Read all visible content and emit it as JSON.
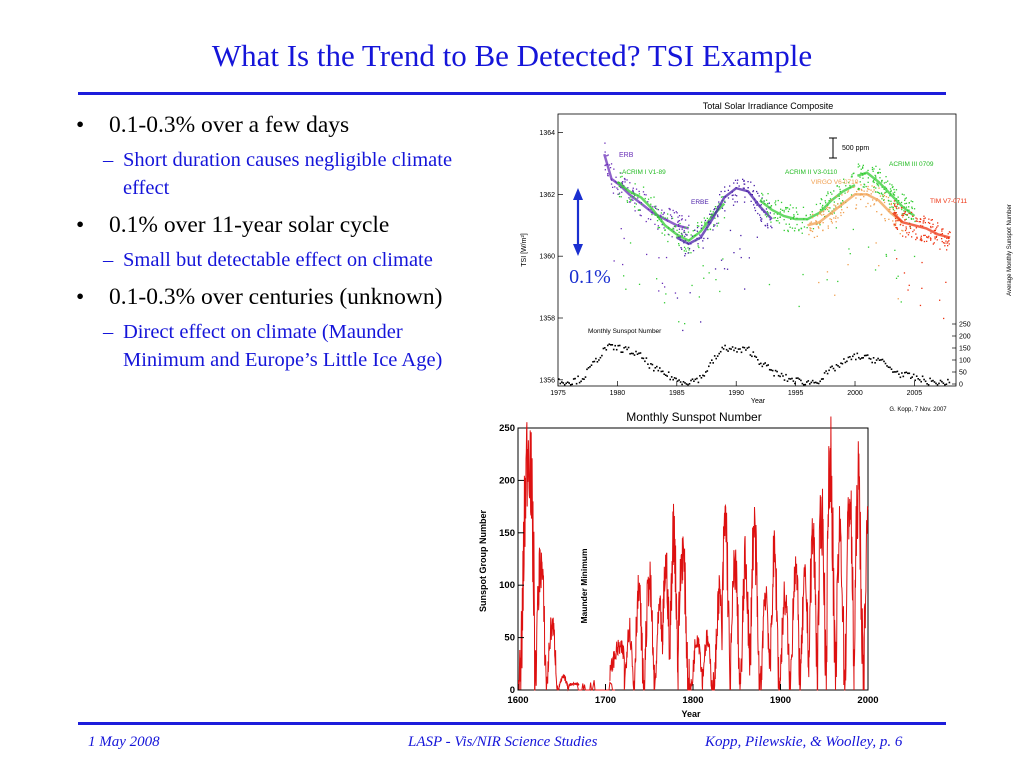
{
  "slide": {
    "title": "What Is the Trend to Be Detected? TSI Example",
    "bullets": [
      {
        "text": "0.1-0.3% over a few days",
        "sub": "Short duration causes negligible climate effect"
      },
      {
        "text": "0.1% over 11-year solar cycle",
        "sub": "Small but detectable effect on climate"
      },
      {
        "text": "0.1-0.3% over centuries (unknown)",
        "sub": "Direct effect on climate (Maunder Minimum and Europe’s Little Ice Age)"
      }
    ],
    "bullet_symbol": "•",
    "dash_symbol": "–",
    "annotation": "0.1%",
    "colors": {
      "title": "#1515d9",
      "rule": "#1d1ddb",
      "arrow": "#1a2fd0",
      "red_series": "#dd1111"
    }
  },
  "footer": {
    "date": "1 May 2008",
    "center": "LASP - Vis/NIR Science Studies",
    "right": "Kopp, Pilewskie, & Woolley, p. 6"
  },
  "chart_data": [
    {
      "type": "scatter",
      "title": "Total Solar Irradiance Composite",
      "xlabel": "Year",
      "ylabel": "TSI [W/m²]",
      "y2label": "Average Monthly Sunspot Number",
      "x_ticks": [
        1975,
        1980,
        1985,
        1990,
        1995,
        2000,
        2005
      ],
      "y_ticks": [
        1356,
        1358,
        1360,
        1362,
        1364
      ],
      "y2_ticks": [
        0,
        50,
        100,
        150,
        200,
        250
      ],
      "xlim": [
        1975,
        2008.5
      ],
      "ylim": [
        1355.8,
        1364.6
      ],
      "scale_bar_label": "500 ppm",
      "inset_label": "Monthly Sunspot Number",
      "credit": "G. Kopp, 7 Nov. 2007",
      "series": [
        {
          "name": "ERB",
          "color": "#6a2fb8",
          "x": [
            1978.9,
            1979.5,
            1980.2,
            1981,
            1982,
            1983,
            1984,
            1985,
            1986
          ],
          "y": [
            1363.3,
            1362.5,
            1362.3,
            1362.0,
            1361.7,
            1361.4,
            1361.2,
            1361.0,
            1360.9
          ]
        },
        {
          "name": "ACRIM I V1-89",
          "color": "#33cc33",
          "x": [
            1980,
            1981,
            1982,
            1983,
            1984,
            1985,
            1986,
            1987,
            1988,
            1989
          ],
          "y": [
            1362.4,
            1362.1,
            1361.9,
            1361.5,
            1361.0,
            1360.7,
            1360.5,
            1360.8,
            1361.3,
            1361.7
          ]
        },
        {
          "name": "ERBE",
          "color": "#4a1fa8",
          "x": [
            1985,
            1986,
            1987,
            1988,
            1989,
            1990,
            1991,
            1992,
            1993
          ],
          "y": [
            1360.6,
            1360.4,
            1360.6,
            1361.2,
            1361.9,
            1362.2,
            1362.1,
            1361.6,
            1361.2
          ]
        },
        {
          "name": "ACRIM II V3-0110",
          "color": "#33cc33",
          "x": [
            1992,
            1993,
            1994,
            1995,
            1996,
            1997,
            1998,
            1999,
            2000
          ],
          "y": [
            1361.8,
            1361.5,
            1361.3,
            1361.2,
            1361.2,
            1361.4,
            1361.8,
            1362.1,
            1362.3
          ]
        },
        {
          "name": "VIRGO V6-0710",
          "color": "#f0a050",
          "x": [
            1996,
            1997,
            1998,
            1999,
            2000,
            2001,
            2002,
            2003,
            2004
          ],
          "y": [
            1361.0,
            1361.1,
            1361.4,
            1361.7,
            1362.0,
            1362.0,
            1361.8,
            1361.4,
            1361.1
          ]
        },
        {
          "name": "ACRIM III 0709",
          "color": "#33cc33",
          "x": [
            2000.2,
            2001,
            2002,
            2003,
            2004,
            2005
          ],
          "y": [
            1362.6,
            1362.7,
            1362.4,
            1362.0,
            1361.6,
            1361.3
          ]
        },
        {
          "name": "TIM V7-0711",
          "color": "#ee3311",
          "x": [
            2003.2,
            2004,
            2005,
            2006,
            2007,
            2008
          ],
          "y": [
            1361.4,
            1361.1,
            1361.0,
            1360.9,
            1360.7,
            1360.6
          ]
        }
      ],
      "sunspot_monthly": {
        "x": [
          1975,
          1976,
          1977,
          1978,
          1979,
          1980,
          1981,
          1982,
          1983,
          1984,
          1985,
          1986,
          1987,
          1988,
          1989,
          1990,
          1991,
          1992,
          1993,
          1994,
          1995,
          1996,
          1997,
          1998,
          1999,
          2000,
          2001,
          2002,
          2003,
          2004,
          2005,
          2006,
          2007
        ],
        "y": [
          15,
          12,
          27,
          92,
          155,
          154,
          140,
          115,
          66,
          45,
          17,
          13,
          29,
          100,
          157,
          142,
          145,
          94,
          54,
          29,
          17,
          8,
          21,
          64,
          93,
          119,
          110,
          104,
          63,
          40,
          29,
          15,
          7
        ]
      }
    },
    {
      "type": "line",
      "title": "Monthly Sunspot Number",
      "xlabel": "Year",
      "ylabel": "Sunspot Group Number",
      "annotation": "Maunder Minimum",
      "x_ticks": [
        1600,
        1700,
        1800,
        1900,
        2000
      ],
      "y_ticks": [
        0,
        50,
        100,
        150,
        200,
        250
      ],
      "xlim": [
        1600,
        2000
      ],
      "ylim": [
        0,
        250
      ],
      "peaks": {
        "x": [
          1612,
          1626,
          1639,
          1652,
          1664,
          1716,
          1727,
          1738,
          1750,
          1762,
          1769,
          1778,
          1788,
          1805,
          1816,
          1830,
          1837,
          1848,
          1860,
          1870,
          1883,
          1893,
          1905,
          1917,
          1928,
          1937,
          1947,
          1957,
          1968,
          1979,
          1989,
          2000
        ],
        "y": [
          235,
          122,
          62,
          12,
          6,
          40,
          60,
          92,
          105,
          75,
          118,
          152,
          132,
          52,
          48,
          92,
          163,
          120,
          122,
          152,
          95,
          128,
          88,
          118,
          102,
          147,
          168,
          222,
          148,
          185,
          195,
          160
        ]
      }
    }
  ]
}
